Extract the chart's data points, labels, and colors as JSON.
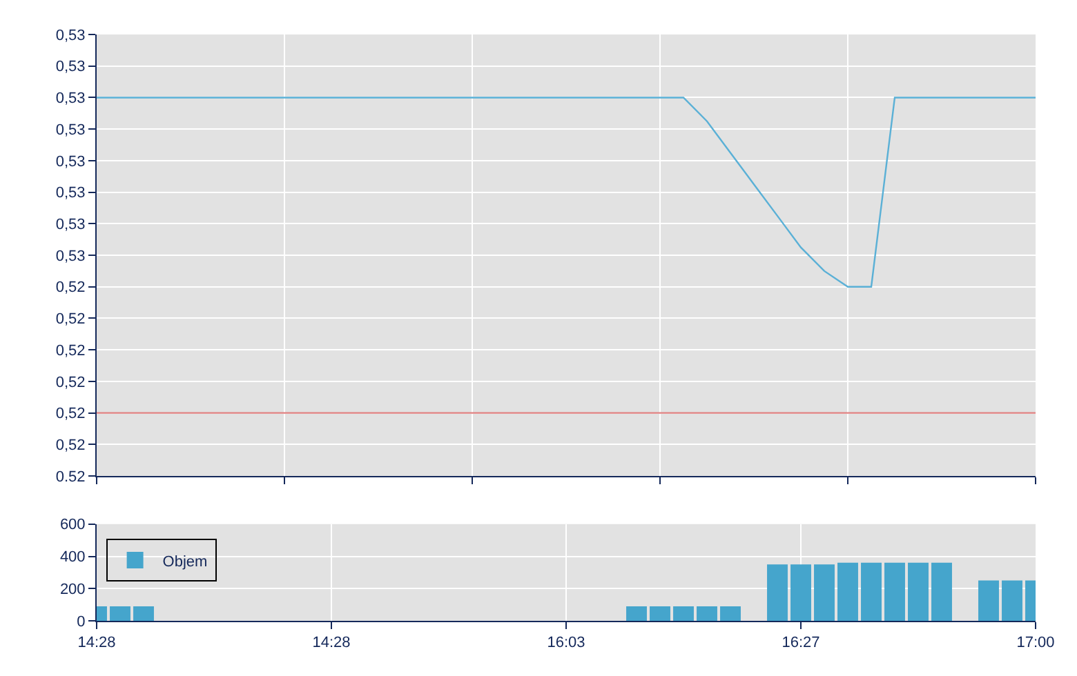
{
  "chart_data": [
    {
      "type": "line",
      "categories": [
        null,
        null,
        null,
        null,
        null,
        null,
        null,
        null,
        null,
        null,
        null,
        null,
        null,
        null,
        null,
        null,
        null,
        null,
        null,
        null,
        null,
        null,
        null,
        null,
        null,
        null,
        null,
        null,
        null,
        null,
        null,
        null,
        null,
        null,
        null,
        null,
        null,
        null,
        null,
        null,
        null
      ],
      "series": [
        {
          "color": "#5ab0d6",
          "values": [
            0.527,
            0.527,
            0.527,
            0.527,
            0.527,
            0.527,
            0.527,
            0.527,
            0.527,
            0.527,
            0.527,
            0.527,
            0.527,
            0.527,
            0.527,
            0.527,
            0.527,
            0.527,
            0.527,
            0.527,
            0.527,
            0.527,
            0.527,
            0.527,
            0.527,
            0.527,
            0.5267,
            0.5263,
            0.5259,
            0.5255,
            0.5251,
            0.5248,
            0.5246,
            0.5246,
            0.527,
            0.527,
            0.527,
            0.527,
            0.527,
            0.527,
            0.527
          ]
        }
      ],
      "ylim": [
        0.5222,
        0.5278
      ],
      "yticks": [
        {
          "value": 0.5222,
          "label": "0.52"
        },
        {
          "value": 0.5226,
          "label": "0,52"
        },
        {
          "value": 0.523,
          "label": "0,52"
        },
        {
          "value": 0.5234,
          "label": "0,52"
        },
        {
          "value": 0.5238,
          "label": "0,52"
        },
        {
          "value": 0.5242,
          "label": "0,52"
        },
        {
          "value": 0.5246,
          "label": "0,52"
        },
        {
          "value": 0.525,
          "label": "0,53"
        },
        {
          "value": 0.5254,
          "label": "0,53"
        },
        {
          "value": 0.5258,
          "label": "0,53"
        },
        {
          "value": 0.5262,
          "label": "0,53"
        },
        {
          "value": 0.5266,
          "label": "0,53"
        },
        {
          "value": 0.527,
          "label": "0,53"
        },
        {
          "value": 0.5274,
          "label": "0,53"
        },
        {
          "value": 0.5278,
          "label": "0,53"
        }
      ],
      "ref_lines": [
        {
          "axis": "y",
          "value": 0.523,
          "color": "#e08080"
        }
      ],
      "grid": true,
      "tick_labels": "y"
    },
    {
      "type": "bar",
      "categories": [
        "14:28",
        null,
        null,
        null,
        null,
        null,
        null,
        null,
        null,
        null,
        "14:28",
        null,
        null,
        null,
        null,
        null,
        null,
        null,
        null,
        null,
        "16:03",
        null,
        null,
        null,
        null,
        null,
        null,
        null,
        null,
        null,
        "16:27",
        null,
        null,
        null,
        null,
        null,
        null,
        null,
        null,
        null,
        "17:00"
      ],
      "series": [
        {
          "name": "Objem",
          "color": "#45a5cc",
          "values": [
            90,
            90,
            90,
            null,
            null,
            null,
            null,
            null,
            null,
            null,
            null,
            null,
            null,
            null,
            null,
            null,
            null,
            null,
            null,
            null,
            null,
            null,
            null,
            90,
            90,
            90,
            90,
            90,
            null,
            350,
            350,
            350,
            360,
            360,
            360,
            360,
            360,
            null,
            250,
            250,
            250
          ]
        }
      ],
      "ylim": [
        0,
        600
      ],
      "yticks": [
        0,
        200,
        400,
        600
      ],
      "grid": true,
      "legend": "top left"
    }
  ]
}
